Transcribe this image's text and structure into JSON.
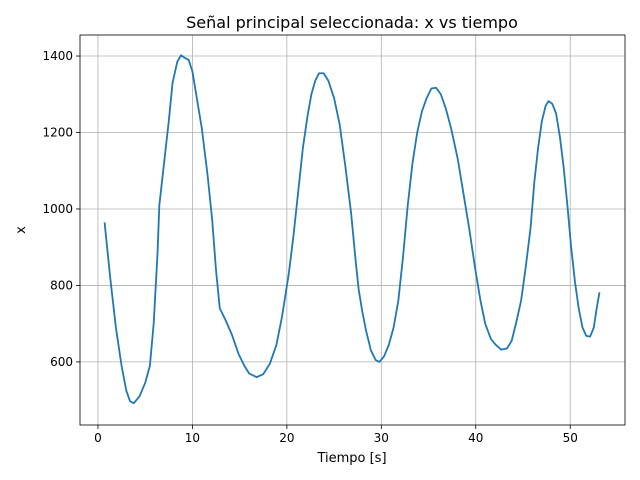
{
  "chart_data": {
    "type": "line",
    "title": "Señal principal seleccionada: x vs tiempo",
    "xlabel": "Tiempo [s]",
    "ylabel": "x",
    "color": "#1f77b4",
    "grid": true,
    "xlim": [
      -1.9,
      55.8
    ],
    "ylim": [
      435,
      1455
    ],
    "xticks": [
      0,
      10,
      20,
      30,
      40,
      50
    ],
    "yticks": [
      600,
      800,
      1000,
      1200,
      1400
    ],
    "x": [
      0.7,
      1.3,
      1.9,
      2.5,
      3.0,
      3.4,
      3.8,
      4.4,
      5.0,
      5.5,
      5.9,
      6.3,
      6.5,
      7.0,
      7.5,
      7.9,
      8.4,
      8.8,
      9.2,
      9.6,
      10.0,
      10.4,
      11.0,
      11.6,
      12.1,
      12.5,
      12.9,
      13.5,
      14.2,
      14.9,
      15.5,
      16.0,
      16.8,
      17.5,
      18.2,
      18.9,
      19.5,
      20.2,
      20.7,
      21.2,
      21.7,
      22.2,
      22.6,
      23.0,
      23.4,
      23.9,
      24.4,
      25.0,
      25.6,
      26.2,
      26.8,
      27.3,
      27.6,
      28.0,
      28.4,
      28.9,
      29.4,
      29.8,
      30.3,
      30.8,
      31.3,
      31.8,
      32.3,
      32.8,
      33.3,
      33.8,
      34.3,
      34.8,
      35.3,
      35.8,
      36.3,
      36.8,
      37.4,
      38.1,
      38.7,
      39.3,
      39.9,
      40.5,
      41.0,
      41.6,
      42.1,
      42.7,
      43.3,
      43.8,
      44.3,
      44.8,
      45.3,
      45.8,
      46.2,
      46.6,
      47.0,
      47.4,
      47.7,
      48.1,
      48.5,
      48.9,
      49.3,
      49.7,
      50.1,
      50.5,
      50.9,
      51.3,
      51.7,
      52.1,
      52.5,
      52.8,
      53.1
    ],
    "values": [
      965,
      820,
      690,
      590,
      525,
      497,
      492,
      510,
      545,
      590,
      700,
      880,
      1010,
      1120,
      1230,
      1330,
      1385,
      1402,
      1395,
      1390,
      1360,
      1300,
      1210,
      1090,
      970,
      840,
      740,
      710,
      670,
      620,
      590,
      570,
      560,
      568,
      595,
      645,
      720,
      830,
      930,
      1045,
      1160,
      1245,
      1300,
      1335,
      1355,
      1355,
      1335,
      1290,
      1220,
      1110,
      990,
      860,
      790,
      730,
      680,
      630,
      605,
      600,
      615,
      645,
      690,
      760,
      875,
      1010,
      1120,
      1200,
      1255,
      1290,
      1315,
      1317,
      1300,
      1265,
      1210,
      1130,
      1040,
      950,
      850,
      760,
      700,
      660,
      645,
      632,
      635,
      655,
      705,
      760,
      850,
      950,
      1070,
      1160,
      1230,
      1270,
      1282,
      1275,
      1250,
      1190,
      1110,
      1010,
      900,
      810,
      740,
      690,
      668,
      666,
      690,
      740,
      782
    ]
  }
}
